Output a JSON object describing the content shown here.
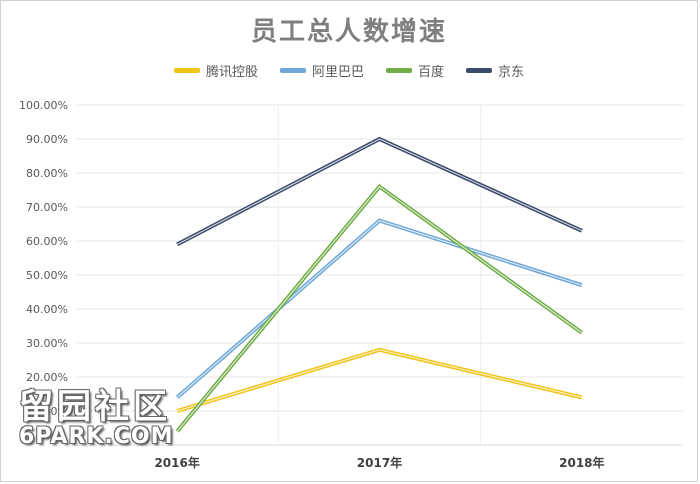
{
  "chart_data": {
    "type": "line",
    "title": "员工总人数增速",
    "categories": [
      "2016年",
      "2017年",
      "2018年"
    ],
    "ylim": [
      0,
      1
    ],
    "yticks": [
      "100.00%",
      "90.00%",
      "80.00%",
      "70.00%",
      "60.00%",
      "50.00%",
      "40.00%",
      "30.00%",
      "20.00%",
      "10.00%"
    ],
    "grid": true,
    "legend_position": "top",
    "series": [
      {
        "name": "腾讯控股",
        "color": "#f0c419",
        "values": [
          0.1,
          0.28,
          0.14
        ]
      },
      {
        "name": "阿里巴巴",
        "color": "#6fa8d8",
        "values": [
          0.14,
          0.66,
          0.47
        ]
      },
      {
        "name": "百度",
        "color": "#70ad47",
        "values": [
          0.04,
          0.76,
          0.33
        ]
      },
      {
        "name": "京东",
        "color": "#3b4b6b",
        "values": [
          0.59,
          0.9,
          0.63
        ]
      }
    ]
  },
  "watermark": {
    "line1": "留园社区",
    "line2": "6PARK.COM"
  }
}
